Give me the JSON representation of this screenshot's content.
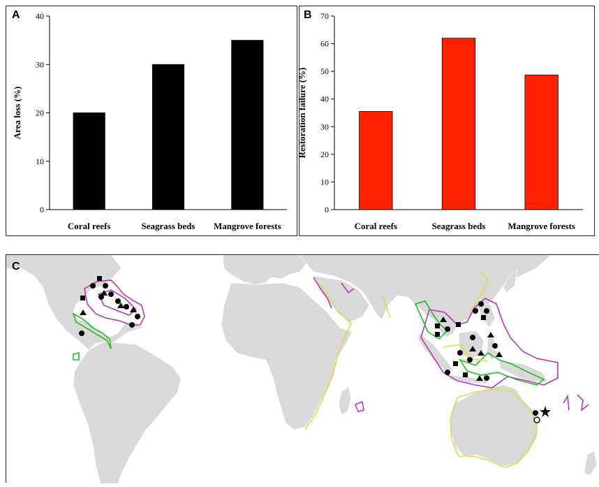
{
  "panels": {
    "a_label": "A",
    "b_label": "B",
    "c_label": "C"
  },
  "chart_data": [
    {
      "type": "bar",
      "categories": [
        "Coral reefs",
        "Seagrass beds",
        "Mangrove forests"
      ],
      "values": [
        20,
        30,
        35
      ],
      "ylabel": "Area loss (%)",
      "ylim": [
        0,
        40
      ],
      "yticks": [
        0,
        10,
        20,
        30,
        40
      ],
      "bar_color": "#000000",
      "grid": false
    },
    {
      "type": "bar",
      "categories": [
        "Coral reefs",
        "Seagrass beds",
        "Mangrove forests"
      ],
      "values": [
        35.5,
        62,
        48.7
      ],
      "ylabel": "Restoration failure (%)",
      "ylim": [
        0,
        70
      ],
      "yticks": [
        0,
        10,
        20,
        30,
        40,
        50,
        60,
        70
      ],
      "bar_color": "#ff2200",
      "grid": false
    }
  ],
  "map": {
    "land_color": "#d9d9d9",
    "ocean_color": "#ffffff",
    "mangrove_color": "#22bb22",
    "coral_color": "#bb33bb",
    "seagrass_color": "#dddd44",
    "marker_color": "#000000"
  }
}
